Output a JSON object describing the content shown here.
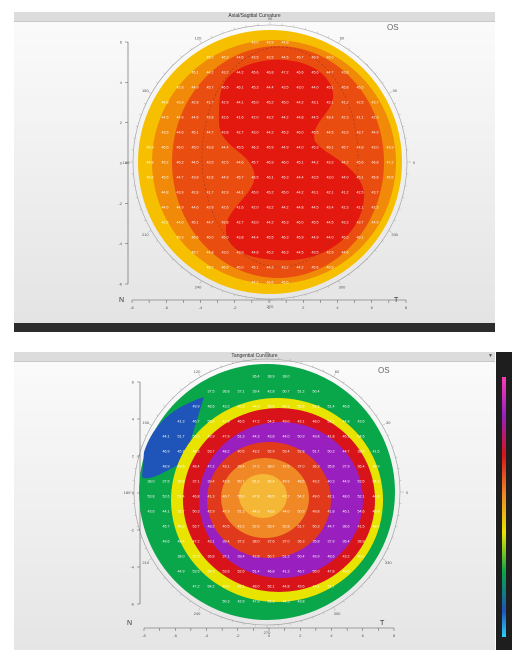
{
  "axial": {
    "title": "Axial/Sagittal Curvature",
    "eye": "OS",
    "left_label": "N",
    "right_label": "T",
    "degree_labels": [
      "90",
      "0",
      "270",
      "180",
      "60",
      "30",
      "330",
      "300",
      "240",
      "210",
      "150",
      "120"
    ],
    "x_ticks": [
      "-8",
      "-7",
      "-6",
      "-5",
      "-4",
      "-3",
      "-2",
      "-1",
      "0",
      "1",
      "2",
      "3",
      "4",
      "5",
      "6",
      "7",
      "8"
    ],
    "y_ticks": [
      "6",
      "4",
      "2",
      "0",
      "-2",
      "-4",
      "-6"
    ],
    "colors": {
      "outer": "#f6c000",
      "mid": "#f08a08",
      "inner": "#ea4d10",
      "core": "#e3180f"
    },
    "map_values": [
      "43.0",
      "43.9",
      "44.8",
      "45.2",
      "46.3",
      "44.5",
      "43.5",
      "42.5",
      "44.6",
      "45.7",
      "46.9",
      "46.0",
      "45.1",
      "44.2",
      "43.2",
      "44.2",
      "45.6",
      "46.8",
      "47.2",
      "46.6",
      "45.6",
      "44.7",
      "43.8",
      "42.8",
      "44.9",
      "45.7",
      "46.5",
      "46.1",
      "45.3",
      "44.4",
      "43.5",
      "43.0",
      "44.0",
      "45.1",
      "45.8",
      "45.5",
      "44.8",
      "43.9",
      "42.8",
      "41.7",
      "42.9",
      "44.1",
      "45.0",
      "45.2",
      "45.0",
      "44.2",
      "43.1",
      "42.1",
      "41.2",
      "42.5",
      "43.7",
      "44.6",
      "44.9",
      "44.6",
      "43.8",
      "42.6",
      "41.6",
      "42.0",
      "43.2",
      "44.2",
      "44.8",
      "44.5",
      "43.4",
      "42.3",
      "41.1",
      "42.3",
      "43.6",
      "44.6",
      "45.1",
      "44.7",
      "43.8",
      "42.7",
      "43.0",
      "44.2",
      "45.3",
      "46.0",
      "45.5",
      "44.5",
      "43.3",
      "43.7",
      "44.9",
      "45.9",
      "46.6",
      "46.0",
      "45.0",
      "43.8",
      "44.4",
      "45.5",
      "46.3",
      "45.9",
      "44.9",
      "44.0",
      "45.3",
      "46.1",
      "45.7",
      "44.8"
    ]
  },
  "tangential": {
    "title": "Tangential Curvature",
    "eye": "OS",
    "left_label": "N",
    "right_label": "T",
    "degree_labels": [
      "90",
      "0",
      "270",
      "180",
      "60",
      "30",
      "330",
      "300",
      "240",
      "210",
      "150",
      "120"
    ],
    "x_ticks": [
      "-8",
      "-7",
      "-6",
      "-5",
      "-4",
      "-3",
      "-2",
      "-1",
      "0",
      "1",
      "2",
      "3",
      "4",
      "5",
      "6",
      "7",
      "8"
    ],
    "y_ticks": [
      "6",
      "4",
      "2",
      "0",
      "-2",
      "-4",
      "-6"
    ],
    "colors": {
      "outer_blue": "#1f55b8",
      "outer_green": "#0aa64a",
      "yellow": "#e8e400",
      "red_ring": "#d8141a",
      "purple": "#9a1fbf",
      "inner_red": "#e0391b",
      "inner_orange": "#f08826",
      "center": "#f5b836"
    },
    "map_values": [
      "36.4",
      "38.9",
      "38.0",
      "37.5",
      "36.8",
      "37.1",
      "39.4",
      "42.8",
      "50.7",
      "51.2",
      "50.4",
      "49.9",
      "48.6",
      "43.2",
      "40.3",
      "44.9",
      "53.5",
      "54.3",
      "53.8",
      "52.6",
      "51.4",
      "46.8",
      "41.3",
      "46.7",
      "55.0",
      "47.8",
      "46.5",
      "47.2",
      "54.2",
      "49.0",
      "42.1",
      "48.0",
      "52.1",
      "44.8",
      "43.6",
      "44.1",
      "51.7",
      "50.3",
      "42.9",
      "47.9",
      "51.3",
      "44.3",
      "43.8",
      "44.0",
      "50.9",
      "49.8",
      "41.8",
      "46.1",
      "54.6",
      "46.9",
      "45.7",
      "46.3",
      "53.7",
      "48.2",
      "40.5",
      "43.2",
      "52.9",
      "53.4",
      "52.8",
      "51.7",
      "50.3",
      "44.7",
      "38.6",
      "41.5",
      "48.9",
      "49.6",
      "48.4",
      "47.2",
      "43.1",
      "39.4",
      "37.2",
      "38.0",
      "37.6",
      "37.0",
      "36.3",
      "35.8",
      "37.9"
    ]
  }
}
